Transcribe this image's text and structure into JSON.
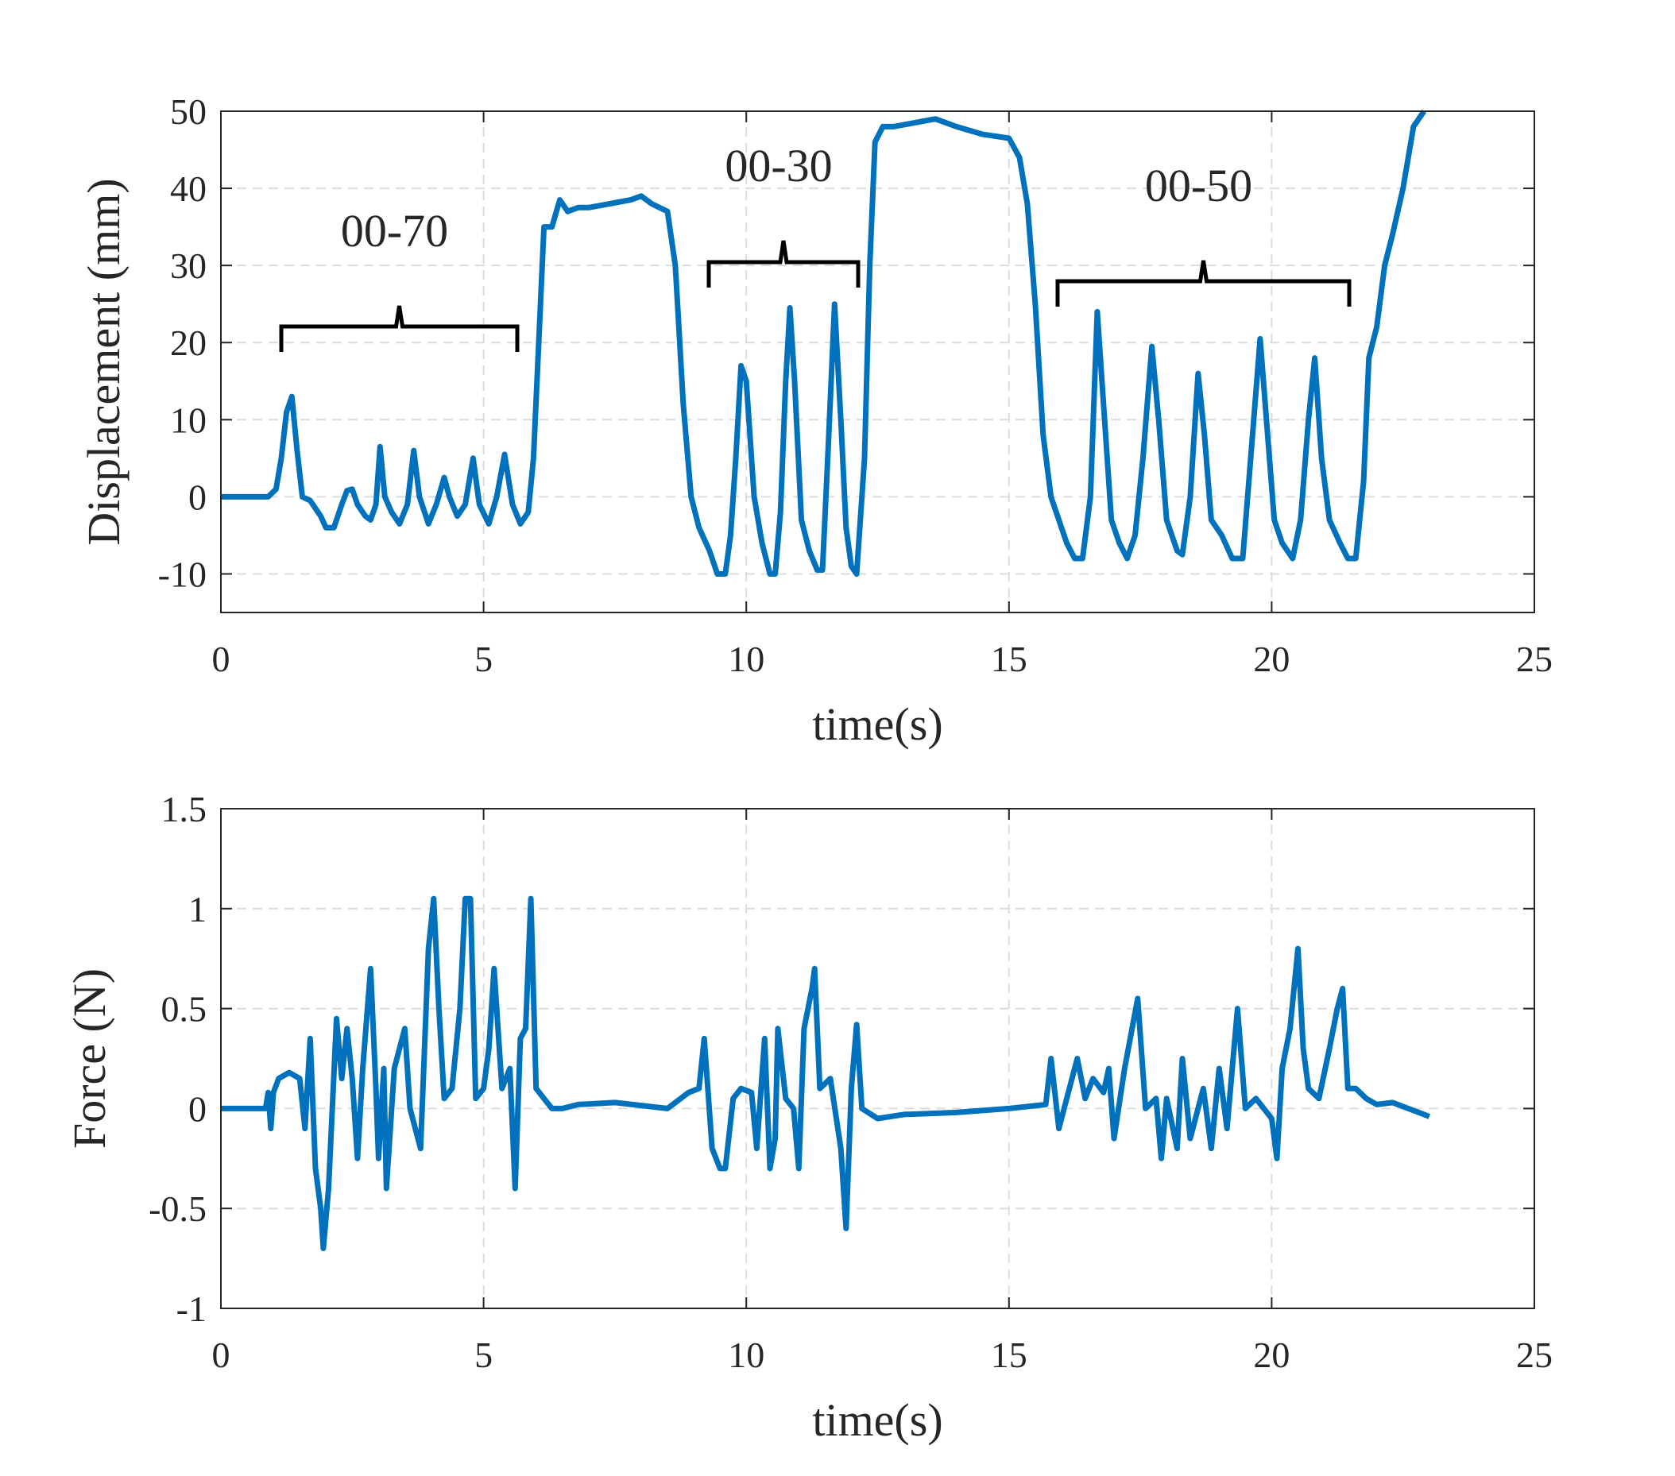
{
  "chart_data": [
    {
      "type": "line",
      "xlabel": "time(s)",
      "ylabel": "Displacement (mm)",
      "xlim": [
        0,
        25
      ],
      "xticks": [
        0,
        5,
        10,
        15,
        20,
        25
      ],
      "ylim": [
        -15,
        50
      ],
      "yticks": [
        -10,
        0,
        10,
        20,
        30,
        40,
        50
      ],
      "grid": true,
      "annotations": [
        "00-70",
        "00-30",
        "00-50"
      ],
      "series": [
        {
          "color": "#0072bd",
          "x": [
            0,
            0.9,
            1.05,
            1.15,
            1.25,
            1.35,
            1.45,
            1.55,
            1.7,
            1.9,
            2.0,
            2.15,
            2.3,
            2.4,
            2.5,
            2.6,
            2.75,
            2.85,
            2.95,
            3.03,
            3.12,
            3.25,
            3.4,
            3.55,
            3.67,
            3.78,
            3.95,
            4.1,
            4.25,
            4.35,
            4.5,
            4.65,
            4.8,
            4.92,
            5.1,
            5.25,
            5.4,
            5.55,
            5.7,
            5.85,
            5.95,
            6.05,
            6.15,
            6.3,
            6.45,
            6.6,
            6.8,
            7.0,
            7.4,
            7.8,
            8.0,
            8.2,
            8.5,
            8.65,
            8.8,
            8.95,
            9.1,
            9.3,
            9.45,
            9.6,
            9.7,
            9.8,
            9.9,
            10.0,
            10.15,
            10.3,
            10.45,
            10.55,
            10.65,
            10.75,
            10.83,
            10.92,
            11.05,
            11.2,
            11.35,
            11.45,
            11.55,
            11.68,
            11.8,
            11.9,
            12.0,
            12.1,
            12.25,
            12.35,
            12.45,
            12.6,
            12.8,
            13.2,
            13.6,
            14.0,
            14.5,
            15.0,
            15.2,
            15.35,
            15.5,
            15.65,
            15.8,
            15.95,
            16.1,
            16.25,
            16.4,
            16.55,
            16.68,
            16.8,
            16.95,
            17.1,
            17.25,
            17.4,
            17.55,
            17.72,
            17.85,
            18.0,
            18.2,
            18.3,
            18.45,
            18.6,
            18.72,
            18.85,
            19.05,
            19.25,
            19.45,
            19.6,
            19.78,
            19.9,
            20.05,
            20.2,
            20.4,
            20.55,
            20.7,
            20.82,
            20.95,
            21.1,
            21.3,
            21.45,
            21.6,
            21.75,
            21.85,
            22.0,
            22.15,
            22.3,
            22.5,
            22.7,
            22.9
          ],
          "values": [
            0,
            0,
            1,
            5,
            11,
            13,
            6,
            0,
            -0.5,
            -2.5,
            -4,
            -4,
            -1,
            0.8,
            1,
            -1,
            -2.5,
            -3,
            -1,
            6.5,
            0,
            -2,
            -3.5,
            -1,
            6,
            0,
            -3.5,
            -1,
            2.5,
            0,
            -2.5,
            -1,
            5,
            -1,
            -3.5,
            0,
            5.5,
            -1,
            -3.5,
            -2,
            5,
            20,
            35,
            35,
            38.5,
            37,
            37.5,
            37.5,
            38,
            38.5,
            39,
            38,
            37,
            30,
            12,
            0,
            -4,
            -7,
            -10,
            -10,
            -5,
            5,
            17,
            15,
            0,
            -6,
            -10,
            -10,
            -2,
            15,
            24.5,
            15,
            -3,
            -7,
            -9.5,
            -9.5,
            5,
            25,
            10,
            -4,
            -9,
            -10,
            5,
            30,
            46,
            48,
            48,
            48.5,
            49,
            48,
            47,
            46.5,
            44,
            38,
            25,
            8,
            0,
            -3,
            -6,
            -8,
            -8,
            0,
            24,
            12,
            -3,
            -6,
            -8,
            -5,
            5,
            19.5,
            10,
            -3,
            -7,
            -7.5,
            0,
            16,
            8,
            -3,
            -5,
            -8,
            -8,
            5,
            20.5,
            10,
            -3,
            -6,
            -8,
            -3,
            10,
            18,
            5,
            -3,
            -6,
            -8,
            -8,
            2,
            18,
            22,
            30,
            34,
            40,
            48,
            50
          ]
        }
      ]
    },
    {
      "type": "line",
      "xlabel": "time(s)",
      "ylabel": "Force (N)",
      "xlim": [
        0,
        25
      ],
      "xticks": [
        0,
        5,
        10,
        15,
        20,
        25
      ],
      "ylim": [
        -1,
        1.5
      ],
      "yticks": [
        -1,
        -0.5,
        0,
        0.5,
        1,
        1.5
      ],
      "grid": true,
      "series": [
        {
          "color": "#0072bd",
          "x": [
            0,
            0.85,
            0.9,
            0.95,
            1.0,
            1.1,
            1.3,
            1.5,
            1.6,
            1.7,
            1.8,
            1.9,
            1.95,
            2.05,
            2.2,
            2.3,
            2.4,
            2.5,
            2.6,
            2.7,
            2.85,
            2.95,
            3.0,
            3.1,
            3.15,
            3.3,
            3.5,
            3.6,
            3.8,
            3.95,
            4.05,
            4.15,
            4.25,
            4.4,
            4.55,
            4.65,
            4.75,
            4.85,
            5.0,
            5.1,
            5.2,
            5.35,
            5.5,
            5.6,
            5.7,
            5.8,
            5.9,
            6.0,
            6.15,
            6.3,
            6.5,
            6.8,
            7.5,
            8.5,
            8.9,
            9.1,
            9.2,
            9.35,
            9.5,
            9.6,
            9.75,
            9.9,
            10.1,
            10.2,
            10.35,
            10.45,
            10.55,
            10.6,
            10.75,
            10.9,
            11.0,
            11.1,
            11.25,
            11.3,
            11.4,
            11.6,
            11.8,
            11.9,
            12.0,
            12.1,
            12.2,
            12.5,
            13,
            14,
            15,
            15.7,
            15.8,
            15.95,
            16.1,
            16.3,
            16.45,
            16.6,
            16.8,
            16.9,
            17.0,
            17.2,
            17.45,
            17.6,
            17.8,
            17.9,
            18.0,
            18.2,
            18.3,
            18.45,
            18.7,
            18.85,
            19.0,
            19.15,
            19.35,
            19.5,
            19.7,
            20.0,
            20.1,
            20.2,
            20.35,
            20.5,
            20.6,
            20.7,
            20.9,
            21.1,
            21.25,
            21.35,
            21.45,
            21.6,
            21.8,
            22.0,
            22.3,
            22.6,
            22.9,
            23.0
          ],
          "values": [
            0,
            0,
            0.08,
            -0.1,
            0.08,
            0.15,
            0.18,
            0.15,
            -0.1,
            0.35,
            -0.3,
            -0.5,
            -0.7,
            -0.4,
            0.45,
            0.15,
            0.4,
            0.15,
            -0.25,
            0.2,
            0.7,
            0.1,
            -0.25,
            0.2,
            -0.4,
            0.2,
            0.4,
            0,
            -0.2,
            0.8,
            1.05,
            0.5,
            0.05,
            0.1,
            0.5,
            1.05,
            1.05,
            0.05,
            0.1,
            0.3,
            0.7,
            0.1,
            0.2,
            -0.4,
            0.35,
            0.4,
            1.05,
            0.1,
            0.05,
            0,
            0,
            0.02,
            0.03,
            0,
            0.08,
            0.1,
            0.35,
            -0.2,
            -0.3,
            -0.3,
            0.05,
            0.1,
            0.08,
            -0.2,
            0.35,
            -0.3,
            -0.15,
            0.4,
            0.05,
            0,
            -0.3,
            0.4,
            0.6,
            0.7,
            0.1,
            0.15,
            -0.2,
            -0.6,
            0.1,
            0.42,
            0,
            -0.05,
            -0.03,
            -0.02,
            0,
            0.02,
            0.25,
            -0.1,
            0.05,
            0.25,
            0.05,
            0.15,
            0.08,
            0.2,
            -0.15,
            0.2,
            0.55,
            0,
            0.05,
            -0.25,
            0.05,
            -0.2,
            0.25,
            -0.15,
            0.1,
            -0.2,
            0.2,
            -0.1,
            0.5,
            0,
            0.05,
            -0.05,
            -0.25,
            0.2,
            0.4,
            0.8,
            0.3,
            0.1,
            0.05,
            0.3,
            0.5,
            0.6,
            0.1,
            0.1,
            0.05,
            0.02,
            0.03,
            0,
            -0.03,
            -0.04
          ]
        }
      ]
    }
  ]
}
